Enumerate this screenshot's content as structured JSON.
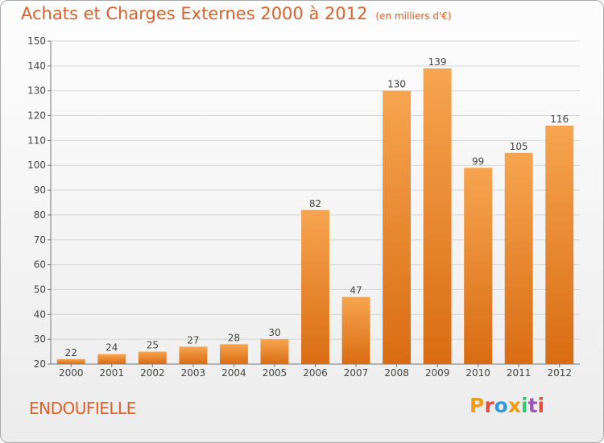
{
  "header": {
    "title": "Achats et Charges Externes 2000 à 2012",
    "unit": "(en milliers d'€)"
  },
  "footer": {
    "place": "ENDOUFIELLE",
    "brand": "Proxiti",
    "brand_colors": [
      "#f39c12",
      "#e74c3c",
      "#3498db",
      "#f39c12",
      "#2ecc71",
      "#9b59b6",
      "#e74c3c"
    ]
  },
  "colors": {
    "bar_top": "#f6a54f",
    "bar_bottom": "#d96c13",
    "title": "#e0602a"
  },
  "chart_data": {
    "type": "bar",
    "categories": [
      "2000",
      "2001",
      "2002",
      "2003",
      "2004",
      "2005",
      "2006",
      "2007",
      "2008",
      "2009",
      "2010",
      "2011",
      "2012"
    ],
    "values": [
      22,
      24,
      25,
      27,
      28,
      30,
      82,
      47,
      130,
      139,
      99,
      105,
      116
    ],
    "title": "Achats et Charges Externes 2000 à 2012",
    "xlabel": "",
    "ylabel": "",
    "ylim": [
      20,
      150
    ],
    "yticks": [
      20,
      30,
      40,
      50,
      60,
      70,
      80,
      90,
      100,
      110,
      120,
      130,
      140,
      150
    ],
    "grid": true,
    "legend": "none"
  }
}
